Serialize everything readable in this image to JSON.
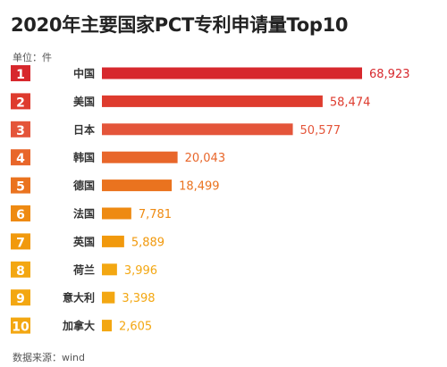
{
  "chart_data": {
    "type": "bar",
    "orientation": "horizontal",
    "title": "2020年主要国家PCT专利申请量Top10",
    "unit_label": "单位：件",
    "source": "数据来源：wind",
    "ranks": [
      "1",
      "2",
      "3",
      "4",
      "5",
      "6",
      "7",
      "8",
      "9",
      "10"
    ],
    "categories": [
      "中国",
      "美国",
      "日本",
      "韩国",
      "德国",
      "法国",
      "英国",
      "荷兰",
      "意大利",
      "加拿大"
    ],
    "values": [
      68923,
      58474,
      50577,
      20043,
      18499,
      7781,
      5889,
      3996,
      3398,
      2605
    ],
    "value_labels": [
      "68,923",
      "58,474",
      "50,577",
      "20,043",
      "18,499",
      "7,781",
      "5,889",
      "3,996",
      "3,398",
      "2,605"
    ],
    "colors": [
      "#d7282d",
      "#de3b2e",
      "#e4553a",
      "#e8662a",
      "#ea731f",
      "#ee8a12",
      "#f1990d",
      "#f3a712",
      "#f3a712",
      "#f3a712"
    ],
    "grid": false,
    "legend": "none"
  }
}
